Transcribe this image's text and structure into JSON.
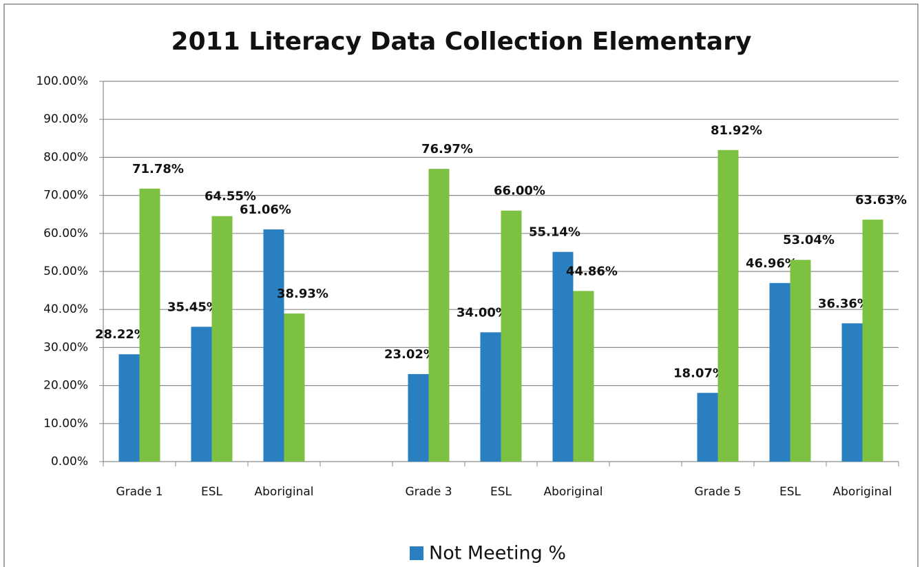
{
  "chart_data": {
    "type": "bar",
    "title": "2011 Literacy Data Collection Elementary",
    "categories": [
      "Grade 1",
      "ESL",
      "Aboriginal",
      null,
      "Grade 3",
      "ESL",
      "Aboriginal",
      null,
      "Grade 5",
      "ESL",
      "Aboriginal"
    ],
    "series": [
      {
        "name": "Not Meeting %",
        "color": "#2a7fc1",
        "values": [
          28.22,
          35.45,
          61.06,
          null,
          23.02,
          34.0,
          55.14,
          null,
          18.07,
          46.96,
          36.36
        ],
        "value_labels": [
          "28.22%",
          "35.45%",
          "61.06%",
          null,
          "23.02%",
          "34.00%",
          "55.14%",
          null,
          "18.07%",
          "46.96%",
          "36.36%"
        ]
      },
      {
        "color": "#7cc142",
        "values": [
          71.78,
          64.55,
          38.93,
          null,
          76.97,
          66.0,
          44.86,
          null,
          81.92,
          53.04,
          63.63
        ],
        "value_labels": [
          "71.78%",
          "64.55%",
          "38.93%",
          null,
          "76.97%",
          "66.00%",
          "44.86%",
          null,
          "81.92%",
          "53.04%",
          "63.63%"
        ]
      }
    ],
    "ylim": [
      0,
      100
    ],
    "yticks": [
      {
        "value": 0,
        "label": "0.00%"
      },
      {
        "value": 10,
        "label": "10.00%"
      },
      {
        "value": 20,
        "label": "20.00%"
      },
      {
        "value": 30,
        "label": "30.00%"
      },
      {
        "value": 40,
        "label": "40.00%"
      },
      {
        "value": 50,
        "label": "50.00%"
      },
      {
        "value": 60,
        "label": "60.00%"
      },
      {
        "value": 70,
        "label": "70.00%"
      },
      {
        "value": 80,
        "label": "80.00%"
      },
      {
        "value": 90,
        "label": "90.00%"
      },
      {
        "value": 100,
        "label": "100.00%"
      }
    ],
    "grid": true,
    "legend": "bottom"
  }
}
